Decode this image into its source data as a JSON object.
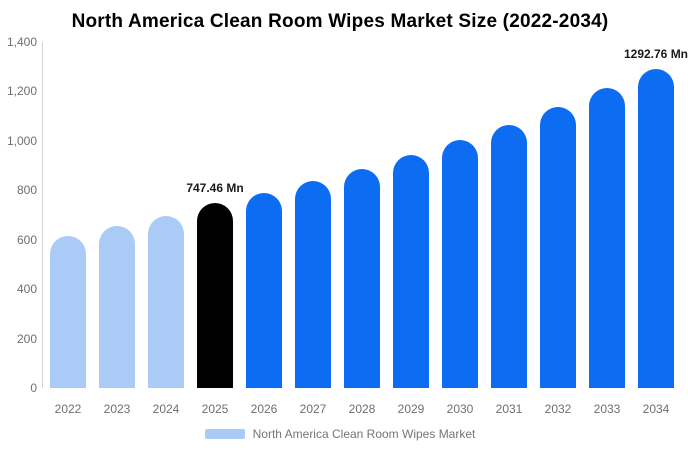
{
  "chart_data": {
    "type": "bar",
    "title": "North America Clean Room Wipes Market Size (2022-2034)",
    "xlabel": "",
    "ylabel": "",
    "unit": "Mn",
    "categories": [
      "2022",
      "2023",
      "2024",
      "2025",
      "2026",
      "2027",
      "2028",
      "2029",
      "2030",
      "2031",
      "2032",
      "2033",
      "2034"
    ],
    "values": [
      615,
      655,
      697,
      747.46,
      787,
      836,
      888,
      944,
      1002,
      1066,
      1136,
      1212,
      1292.76
    ],
    "segments": [
      "historical",
      "historical",
      "historical",
      "current",
      "forecast",
      "forecast",
      "forecast",
      "forecast",
      "forecast",
      "forecast",
      "forecast",
      "forecast",
      "forecast"
    ],
    "ylim": [
      0,
      1400
    ],
    "yticks": [
      {
        "value": 0,
        "label": "0"
      },
      {
        "value": 200,
        "label": "200"
      },
      {
        "value": 400,
        "label": "400"
      },
      {
        "value": 600,
        "label": "600"
      },
      {
        "value": 800,
        "label": "800"
      },
      {
        "value": 1000,
        "label": "1,000"
      },
      {
        "value": 1200,
        "label": "1,200"
      },
      {
        "value": 1400,
        "label": "1,400"
      }
    ],
    "grid": false,
    "legend_position": "bottom",
    "annotations": [
      {
        "category": "2025",
        "text": "747.46 Mn"
      },
      {
        "category": "2034",
        "text": "1292.76 Mn"
      }
    ]
  },
  "colors": {
    "historical": "#a9cbf5",
    "current": "#000000",
    "forecast": "#0c6cf2",
    "axis_line": "#d6d6d6",
    "axis_text": "#6f6f6f",
    "annotation_text": "#1a1a1a",
    "legend_text": "#757575",
    "background": "#ffffff"
  },
  "legend": {
    "label": "North America Clean Room Wipes Market",
    "swatch_color": "#a9cbf5"
  }
}
